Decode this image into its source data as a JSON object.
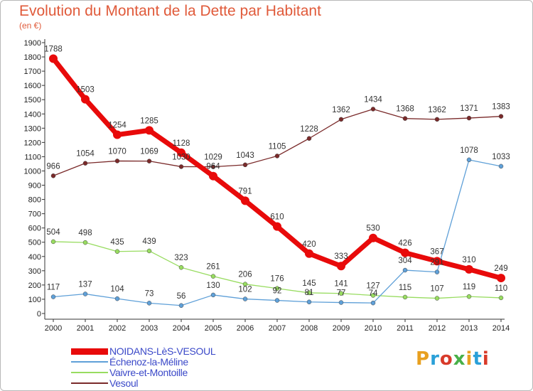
{
  "header": {
    "title": "Evolution du Montant de la Dette par Habitant",
    "unit": "(en €)"
  },
  "logo": {
    "text": "Proxiti",
    "colors": [
      "#e8a020",
      "#2aa0d8",
      "#d83a2a",
      "#48b048",
      "#e8a020",
      "#2aa0d8",
      "#d83a2a"
    ]
  },
  "chart_data": {
    "type": "line",
    "x": [
      "2000",
      "2001",
      "2002",
      "2003",
      "2004",
      "2005",
      "2006",
      "2007",
      "2008",
      "2009",
      "2010",
      "2011",
      "2012",
      "2013",
      "2014"
    ],
    "ylim": [
      0,
      1900
    ],
    "yticks": [
      0,
      100,
      200,
      300,
      400,
      500,
      600,
      700,
      800,
      900,
      1000,
      1100,
      1200,
      1300,
      1400,
      1500,
      1600,
      1700,
      1800,
      1900
    ],
    "grid": false,
    "legend_position": "bottom-left",
    "series": [
      {
        "name": "Vesoul",
        "color": "#7a2a2a",
        "values": [
          966,
          1054,
          1070,
          1069,
          1030,
          1029,
          1043,
          1105,
          1228,
          1362,
          1434,
          1368,
          1362,
          1371,
          1383
        ]
      },
      {
        "name": "Vaivre-et-Montoille",
        "color": "#98dc60",
        "values": [
          504,
          498,
          435,
          439,
          323,
          261,
          206,
          176,
          145,
          141,
          127,
          115,
          107,
          119,
          110
        ]
      },
      {
        "name": "Échenoz-la-Méline",
        "color": "#5fa0d8",
        "values": [
          117,
          137,
          104,
          73,
          56,
          130,
          102,
          92,
          81,
          77,
          74,
          304,
          291,
          1078,
          1033
        ]
      },
      {
        "name": "NOIDANS-LèS-VESOUL",
        "color": "#e80a0a",
        "values": [
          1788,
          1503,
          1254,
          1285,
          1128,
          964,
          791,
          610,
          420,
          333,
          530,
          426,
          367,
          310,
          249
        ]
      }
    ],
    "legend_order": [
      "NOIDANS-LèS-VESOUL",
      "Échenoz-la-Méline",
      "Vaivre-et-Montoille",
      "Vesoul"
    ]
  }
}
